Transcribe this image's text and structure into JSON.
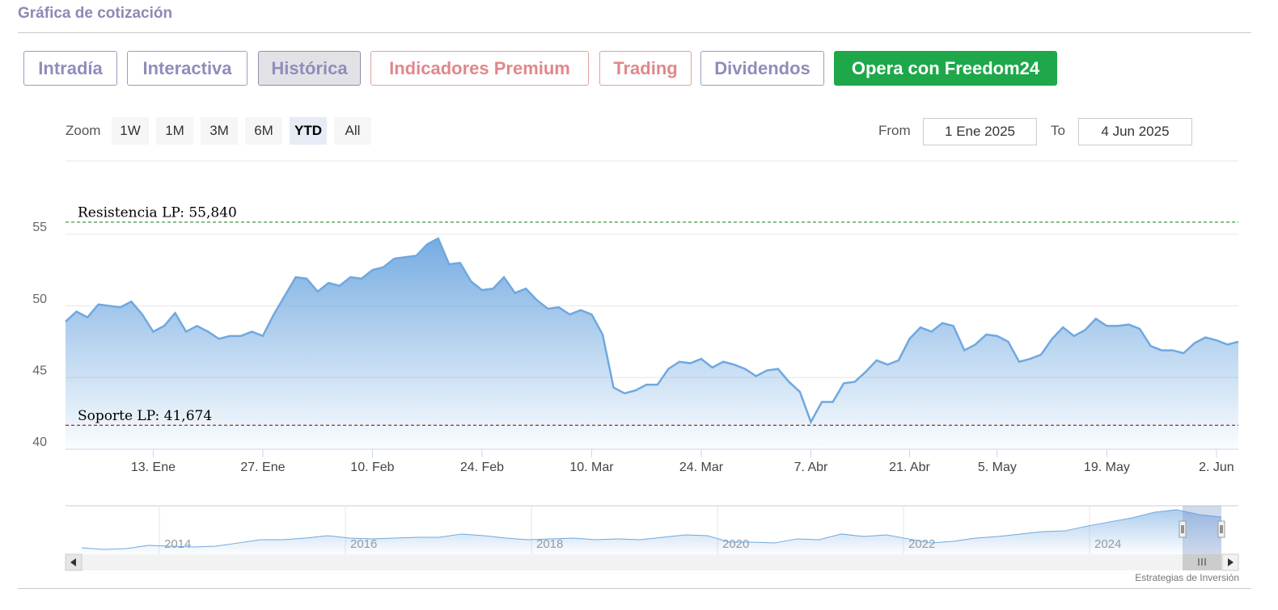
{
  "header": {
    "title": "Gráfica de cotización"
  },
  "tabs": [
    "Intradía",
    "Interactiva",
    "Histórica",
    "Indicadores Premium",
    "Trading",
    "Dividendos",
    "Opera con Freedom24"
  ],
  "zoom": {
    "label": "Zoom",
    "buttons": [
      "1W",
      "1M",
      "3M",
      "6M",
      "YTD",
      "All"
    ]
  },
  "range": {
    "from_label": "From",
    "from": "1 Ene 2025",
    "to_label": "To",
    "to": "4 Jun 2025"
  },
  "chart_data": {
    "type": "area",
    "categories": [
      null,
      null,
      null,
      null,
      null,
      null,
      null,
      null,
      "13. Ene",
      null,
      null,
      null,
      null,
      null,
      null,
      null,
      null,
      null,
      "27. Ene",
      null,
      null,
      null,
      null,
      null,
      null,
      null,
      null,
      null,
      "10. Feb",
      null,
      null,
      null,
      null,
      null,
      null,
      null,
      null,
      null,
      "24. Feb",
      null,
      null,
      null,
      null,
      null,
      null,
      null,
      null,
      null,
      "10. Mar",
      null,
      null,
      null,
      null,
      null,
      null,
      null,
      null,
      null,
      "24. Mar",
      null,
      null,
      null,
      null,
      null,
      null,
      null,
      null,
      null,
      "7. Abr",
      null,
      null,
      null,
      null,
      null,
      null,
      null,
      null,
      "21. Abr",
      null,
      null,
      null,
      null,
      null,
      null,
      null,
      "5. May",
      null,
      null,
      null,
      null,
      null,
      null,
      null,
      null,
      null,
      "19. May",
      null,
      null,
      null,
      null,
      null,
      null,
      null,
      null,
      null,
      "2. Jun",
      null,
      null
    ],
    "values": [
      48.9,
      49.6,
      49.2,
      50.1,
      50.0,
      49.9,
      50.3,
      49.4,
      48.2,
      48.6,
      49.5,
      48.2,
      48.6,
      48.2,
      47.7,
      47.9,
      47.9,
      48.2,
      47.9,
      49.4,
      50.7,
      52.0,
      51.9,
      51.0,
      51.6,
      51.4,
      52.0,
      51.9,
      52.5,
      52.7,
      53.3,
      53.4,
      53.5,
      54.3,
      54.7,
      52.9,
      53.0,
      51.7,
      51.1,
      51.2,
      52.0,
      50.9,
      51.2,
      50.4,
      49.8,
      49.9,
      49.4,
      49.7,
      49.4,
      48.0,
      44.3,
      43.9,
      44.1,
      44.5,
      44.5,
      45.6,
      46.1,
      46.0,
      46.3,
      45.7,
      46.1,
      45.9,
      45.6,
      45.1,
      45.5,
      45.6,
      44.7,
      44.0,
      41.9,
      43.3,
      43.3,
      44.6,
      44.7,
      45.4,
      46.2,
      45.9,
      46.2,
      47.7,
      48.5,
      48.2,
      48.8,
      48.6,
      46.9,
      47.3,
      48.0,
      47.9,
      47.5,
      46.1,
      46.3,
      46.6,
      47.7,
      48.5,
      47.9,
      48.3,
      49.1,
      48.6,
      48.6,
      48.7,
      48.4,
      47.2,
      46.9,
      46.9,
      46.7,
      47.4,
      47.8,
      47.6,
      47.3,
      47.5
    ],
    "color": "#6fa8e0",
    "ylim": [
      40,
      59.5
    ],
    "yticks": [
      40,
      45,
      50,
      55
    ],
    "grid": true,
    "reference_lines": [
      {
        "value": 55.84,
        "label": "Resistencia LP: 55,840",
        "color": "#2e8b2e"
      },
      {
        "value": 41.674,
        "label": "Soporte LP: 41,674",
        "color": "#8b1a1a"
      }
    ]
  },
  "navigator": {
    "labels": [
      "2014",
      "2016",
      "2018",
      "2020",
      "2022",
      "2024"
    ],
    "ylim": [
      24,
      58
    ],
    "values": [
      28.5,
      27.4,
      28.0,
      30.2,
      29.7,
      29.1,
      29.7,
      31.9,
      34.2,
      34.2,
      35.3,
      37.0,
      35.3,
      34.8,
      35.3,
      35.9,
      35.9,
      38.2,
      37.0,
      35.3,
      34.2,
      34.8,
      35.3,
      34.2,
      34.8,
      34.2,
      35.9,
      37.6,
      37.0,
      32.5,
      32.5,
      31.9,
      34.8,
      34.2,
      38.2,
      36.5,
      37.6,
      34.8,
      31.9,
      33.1,
      35.3,
      36.5,
      38.2,
      39.9,
      40.4,
      43.8,
      46.7,
      49.5,
      53.5,
      55.2,
      51.8,
      50.1
    ]
  },
  "footer": {
    "credit": "Estrategias de Inversión"
  }
}
